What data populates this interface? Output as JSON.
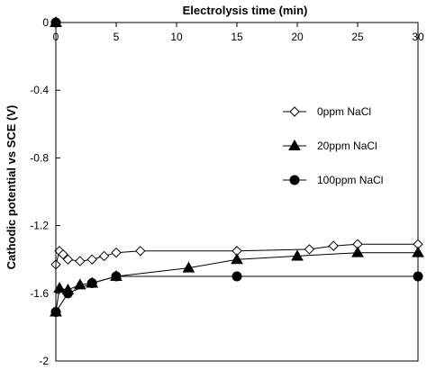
{
  "chart_data": {
    "type": "line",
    "xlabel": "Electrolysis time (min)",
    "ylabel": "Cathodic potential vs SCE (V)",
    "xlim": [
      0,
      30
    ],
    "ylim": [
      -2,
      0
    ],
    "x_ticks": [
      0,
      5,
      10,
      15,
      20,
      25,
      30
    ],
    "y_ticks": [
      0,
      -0.4,
      -0.8,
      -1.2,
      -1.6,
      -2
    ],
    "y_tick_labels": [
      "0",
      "-0.4",
      "-0.8",
      "-1.2",
      "-1.6",
      "-2"
    ],
    "x_axis_position": "top",
    "grid": false,
    "legend_position": "right",
    "series": [
      {
        "name": "0ppm NaCl",
        "marker": "open-diamond",
        "color": "#000000",
        "x": [
          0,
          0,
          0.3,
          0.6,
          1,
          2,
          3,
          4,
          5,
          7,
          15,
          21,
          23,
          25,
          30
        ],
        "y": [
          0,
          -1.43,
          -1.35,
          -1.37,
          -1.4,
          -1.41,
          -1.4,
          -1.38,
          -1.36,
          -1.35,
          -1.35,
          -1.34,
          -1.32,
          -1.31,
          -1.31
        ]
      },
      {
        "name": "20ppm NaCl",
        "marker": "filled-triangle",
        "color": "#000000",
        "x": [
          0,
          0,
          0.3,
          1,
          2,
          3,
          5,
          11,
          15,
          20,
          25,
          30
        ],
        "y": [
          0,
          -1.71,
          -1.57,
          -1.58,
          -1.55,
          -1.54,
          -1.5,
          -1.45,
          -1.4,
          -1.38,
          -1.36,
          -1.36
        ]
      },
      {
        "name": "100ppm NaCl",
        "marker": "filled-circle",
        "color": "#000000",
        "x": [
          0,
          0,
          1,
          3,
          5,
          15,
          30
        ],
        "y": [
          0,
          -1.71,
          -1.6,
          -1.54,
          -1.5,
          -1.5,
          -1.5
        ]
      }
    ]
  }
}
